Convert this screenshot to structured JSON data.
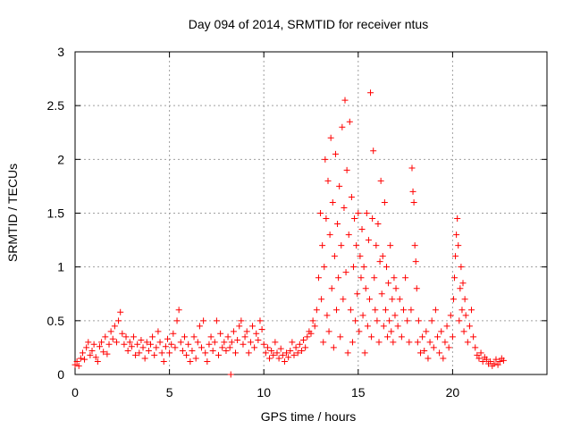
{
  "chart_data": {
    "type": "scatter",
    "title": "Day 094 of 2014, SRMTID for receiver ntus",
    "xlabel": "GPS time / hours",
    "ylabel": "SRMTID / TECUs",
    "xlim": [
      0,
      25
    ],
    "ylim": [
      0,
      3
    ],
    "xticks": [
      0,
      5,
      10,
      15,
      20
    ],
    "xtick_labels": [
      "0",
      "5",
      "10",
      "15",
      "20"
    ],
    "yticks": [
      0,
      0.5,
      1,
      1.5,
      2,
      2.5,
      3
    ],
    "ytick_labels": [
      "0",
      "0.5",
      "1",
      "1.5",
      "2",
      "2.5",
      "3"
    ],
    "grid": true,
    "marker": "+",
    "color": "#ff0000",
    "series": [
      {
        "name": "SRMTID",
        "points": [
          [
            0.0,
            0.09
          ],
          [
            0.1,
            0.12
          ],
          [
            0.2,
            0.08
          ],
          [
            0.3,
            0.15
          ],
          [
            0.4,
            0.2
          ],
          [
            0.5,
            0.14
          ],
          [
            0.6,
            0.25
          ],
          [
            0.7,
            0.3
          ],
          [
            0.8,
            0.18
          ],
          [
            0.9,
            0.22
          ],
          [
            1.0,
            0.28
          ],
          [
            1.1,
            0.16
          ],
          [
            1.2,
            0.12
          ],
          [
            1.3,
            0.26
          ],
          [
            1.4,
            0.3
          ],
          [
            1.5,
            0.21
          ],
          [
            1.6,
            0.35
          ],
          [
            1.7,
            0.19
          ],
          [
            1.8,
            0.28
          ],
          [
            1.9,
            0.4
          ],
          [
            2.0,
            0.33
          ],
          [
            2.1,
            0.45
          ],
          [
            2.2,
            0.3
          ],
          [
            2.3,
            0.5
          ],
          [
            2.4,
            0.58
          ],
          [
            2.5,
            0.38
          ],
          [
            2.6,
            0.28
          ],
          [
            2.7,
            0.35
          ],
          [
            2.8,
            0.22
          ],
          [
            2.9,
            0.3
          ],
          [
            3.0,
            0.26
          ],
          [
            3.1,
            0.35
          ],
          [
            3.2,
            0.18
          ],
          [
            3.3,
            0.28
          ],
          [
            3.4,
            0.2
          ],
          [
            3.5,
            0.32
          ],
          [
            3.6,
            0.25
          ],
          [
            3.7,
            0.15
          ],
          [
            3.8,
            0.3
          ],
          [
            3.9,
            0.22
          ],
          [
            4.0,
            0.28
          ],
          [
            4.1,
            0.35
          ],
          [
            4.2,
            0.18
          ],
          [
            4.3,
            0.25
          ],
          [
            4.4,
            0.4
          ],
          [
            4.5,
            0.3
          ],
          [
            4.6,
            0.2
          ],
          [
            4.7,
            0.12
          ],
          [
            4.8,
            0.26
          ],
          [
            4.9,
            0.33
          ],
          [
            5.0,
            0.2
          ],
          [
            5.1,
            0.28
          ],
          [
            5.2,
            0.38
          ],
          [
            5.3,
            0.25
          ],
          [
            5.4,
            0.5
          ],
          [
            5.5,
            0.6
          ],
          [
            5.6,
            0.3
          ],
          [
            5.7,
            0.22
          ],
          [
            5.8,
            0.35
          ],
          [
            5.9,
            0.18
          ],
          [
            6.0,
            0.28
          ],
          [
            6.1,
            0.12
          ],
          [
            6.2,
            0.22
          ],
          [
            6.3,
            0.35
          ],
          [
            6.4,
            0.15
          ],
          [
            6.5,
            0.3
          ],
          [
            6.6,
            0.45
          ],
          [
            6.7,
            0.25
          ],
          [
            6.8,
            0.5
          ],
          [
            6.9,
            0.2
          ],
          [
            7.0,
            0.12
          ],
          [
            7.1,
            0.28
          ],
          [
            7.2,
            0.35
          ],
          [
            7.3,
            0.22
          ],
          [
            7.4,
            0.3
          ],
          [
            7.5,
            0.5
          ],
          [
            7.6,
            0.18
          ],
          [
            7.7,
            0.38
          ],
          [
            7.8,
            0.25
          ],
          [
            7.9,
            0.3
          ],
          [
            8.0,
            0.22
          ],
          [
            8.1,
            0.35
          ],
          [
            8.2,
            0.25
          ],
          [
            8.25,
            0.0
          ],
          [
            8.3,
            0.3
          ],
          [
            8.4,
            0.4
          ],
          [
            8.5,
            0.2
          ],
          [
            8.6,
            0.32
          ],
          [
            8.7,
            0.45
          ],
          [
            8.8,
            0.5
          ],
          [
            8.9,
            0.28
          ],
          [
            9.0,
            0.35
          ],
          [
            9.1,
            0.4
          ],
          [
            9.2,
            0.2
          ],
          [
            9.3,
            0.3
          ],
          [
            9.4,
            0.45
          ],
          [
            9.5,
            0.25
          ],
          [
            9.6,
            0.38
          ],
          [
            9.7,
            0.32
          ],
          [
            9.8,
            0.5
          ],
          [
            9.9,
            0.42
          ],
          [
            10.0,
            0.28
          ],
          [
            10.1,
            0.2
          ],
          [
            10.2,
            0.25
          ],
          [
            10.3,
            0.15
          ],
          [
            10.4,
            0.22
          ],
          [
            10.5,
            0.18
          ],
          [
            10.6,
            0.3
          ],
          [
            10.7,
            0.2
          ],
          [
            10.8,
            0.15
          ],
          [
            10.9,
            0.24
          ],
          [
            11.0,
            0.18
          ],
          [
            11.1,
            0.12
          ],
          [
            11.2,
            0.2
          ],
          [
            11.3,
            0.16
          ],
          [
            11.4,
            0.22
          ],
          [
            11.5,
            0.3
          ],
          [
            11.6,
            0.18
          ],
          [
            11.7,
            0.25
          ],
          [
            11.8,
            0.2
          ],
          [
            11.9,
            0.28
          ],
          [
            12.0,
            0.22
          ],
          [
            12.1,
            0.32
          ],
          [
            12.2,
            0.25
          ],
          [
            12.3,
            0.35
          ],
          [
            12.4,
            0.4
          ],
          [
            12.5,
            0.38
          ],
          [
            12.6,
            0.5
          ],
          [
            12.7,
            0.45
          ],
          [
            12.8,
            0.6
          ],
          [
            12.9,
            0.9
          ],
          [
            13.0,
            1.5
          ],
          [
            13.05,
            0.7
          ],
          [
            13.1,
            1.2
          ],
          [
            13.15,
            0.3
          ],
          [
            13.2,
            1.0
          ],
          [
            13.25,
            2.0
          ],
          [
            13.3,
            1.45
          ],
          [
            13.35,
            0.55
          ],
          [
            13.4,
            1.8
          ],
          [
            13.45,
            0.4
          ],
          [
            13.5,
            1.3
          ],
          [
            13.55,
            2.2
          ],
          [
            13.6,
            0.8
          ],
          [
            13.65,
            1.6
          ],
          [
            13.7,
            0.25
          ],
          [
            13.75,
            1.1
          ],
          [
            13.8,
            2.05
          ],
          [
            13.85,
            0.6
          ],
          [
            13.9,
            1.4
          ],
          [
            13.95,
            0.9
          ],
          [
            14.0,
            1.75
          ],
          [
            14.05,
            0.35
          ],
          [
            14.1,
            1.2
          ],
          [
            14.15,
            2.3
          ],
          [
            14.2,
            0.7
          ],
          [
            14.25,
            1.55
          ],
          [
            14.3,
            2.55
          ],
          [
            14.35,
            0.95
          ],
          [
            14.4,
            1.9
          ],
          [
            14.45,
            0.2
          ],
          [
            14.5,
            1.3
          ],
          [
            14.55,
            2.35
          ],
          [
            14.6,
            0.6
          ],
          [
            14.65,
            1.65
          ],
          [
            14.7,
            0.3
          ],
          [
            14.75,
            1.0
          ],
          [
            14.8,
            1.45
          ],
          [
            14.85,
            0.5
          ],
          [
            14.9,
            1.2
          ],
          [
            14.95,
            0.75
          ],
          [
            15.0,
            1.5
          ],
          [
            15.05,
            0.4
          ],
          [
            15.1,
            1.1
          ],
          [
            15.15,
            0.9
          ],
          [
            15.2,
            1.35
          ],
          [
            15.25,
            0.55
          ],
          [
            15.3,
            1.0
          ],
          [
            15.35,
            0.2
          ],
          [
            15.4,
            0.8
          ],
          [
            15.45,
            1.5
          ],
          [
            15.5,
            0.45
          ],
          [
            15.55,
            1.25
          ],
          [
            15.6,
            0.7
          ],
          [
            15.65,
            2.62
          ],
          [
            15.7,
            0.35
          ],
          [
            15.75,
            1.45
          ],
          [
            15.8,
            2.08
          ],
          [
            15.85,
            0.9
          ],
          [
            15.9,
            0.6
          ],
          [
            15.95,
            1.2
          ],
          [
            16.0,
            0.5
          ],
          [
            16.05,
            1.4
          ],
          [
            16.1,
            0.3
          ],
          [
            16.15,
            1.05
          ],
          [
            16.2,
            1.8
          ],
          [
            16.25,
            0.75
          ],
          [
            16.3,
            1.1
          ],
          [
            16.35,
            0.45
          ],
          [
            16.4,
            1.6
          ],
          [
            16.45,
            0.6
          ],
          [
            16.5,
            1.0
          ],
          [
            16.55,
            0.35
          ],
          [
            16.6,
            0.85
          ],
          [
            16.65,
            0.5
          ],
          [
            16.7,
            1.2
          ],
          [
            16.75,
            0.4
          ],
          [
            16.8,
            0.7
          ],
          [
            16.85,
            0.3
          ],
          [
            16.9,
            0.9
          ],
          [
            16.95,
            0.55
          ],
          [
            17.0,
            0.8
          ],
          [
            17.1,
            0.45
          ],
          [
            17.2,
            0.7
          ],
          [
            17.3,
            0.35
          ],
          [
            17.4,
            0.6
          ],
          [
            17.5,
            0.9
          ],
          [
            17.6,
            0.5
          ],
          [
            17.7,
            0.3
          ],
          [
            17.8,
            0.6
          ],
          [
            17.85,
            1.92
          ],
          [
            17.9,
            1.7
          ],
          [
            17.95,
            1.6
          ],
          [
            18.0,
            1.2
          ],
          [
            18.05,
            1.05
          ],
          [
            18.1,
            0.8
          ],
          [
            18.15,
            0.3
          ],
          [
            18.2,
            0.5
          ],
          [
            18.3,
            0.2
          ],
          [
            18.4,
            0.35
          ],
          [
            18.5,
            0.22
          ],
          [
            18.6,
            0.4
          ],
          [
            18.7,
            0.15
          ],
          [
            18.8,
            0.3
          ],
          [
            18.9,
            0.5
          ],
          [
            19.0,
            0.25
          ],
          [
            19.1,
            0.6
          ],
          [
            19.2,
            0.35
          ],
          [
            19.3,
            0.2
          ],
          [
            19.4,
            0.4
          ],
          [
            19.5,
            0.15
          ],
          [
            19.6,
            0.3
          ],
          [
            19.7,
            0.45
          ],
          [
            19.8,
            0.25
          ],
          [
            19.9,
            0.55
          ],
          [
            20.0,
            0.35
          ],
          [
            20.05,
            0.7
          ],
          [
            20.1,
            0.9
          ],
          [
            20.15,
            1.1
          ],
          [
            20.2,
            1.3
          ],
          [
            20.25,
            1.45
          ],
          [
            20.3,
            1.2
          ],
          [
            20.35,
            0.5
          ],
          [
            20.4,
            0.8
          ],
          [
            20.45,
            1.0
          ],
          [
            20.5,
            0.6
          ],
          [
            20.55,
            0.85
          ],
          [
            20.6,
            0.4
          ],
          [
            20.65,
            0.7
          ],
          [
            20.7,
            0.55
          ],
          [
            20.8,
            0.3
          ],
          [
            20.9,
            0.45
          ],
          [
            21.0,
            0.6
          ],
          [
            21.1,
            0.35
          ],
          [
            21.2,
            0.25
          ],
          [
            21.3,
            0.18
          ],
          [
            21.4,
            0.15
          ],
          [
            21.5,
            0.2
          ],
          [
            21.6,
            0.12
          ],
          [
            21.7,
            0.16
          ],
          [
            21.8,
            0.14
          ],
          [
            21.9,
            0.1
          ],
          [
            22.0,
            0.12
          ],
          [
            22.1,
            0.08
          ],
          [
            22.2,
            0.1
          ],
          [
            22.3,
            0.14
          ],
          [
            22.4,
            0.09
          ],
          [
            22.5,
            0.12
          ],
          [
            22.6,
            0.15
          ],
          [
            22.7,
            0.13
          ]
        ]
      }
    ]
  }
}
